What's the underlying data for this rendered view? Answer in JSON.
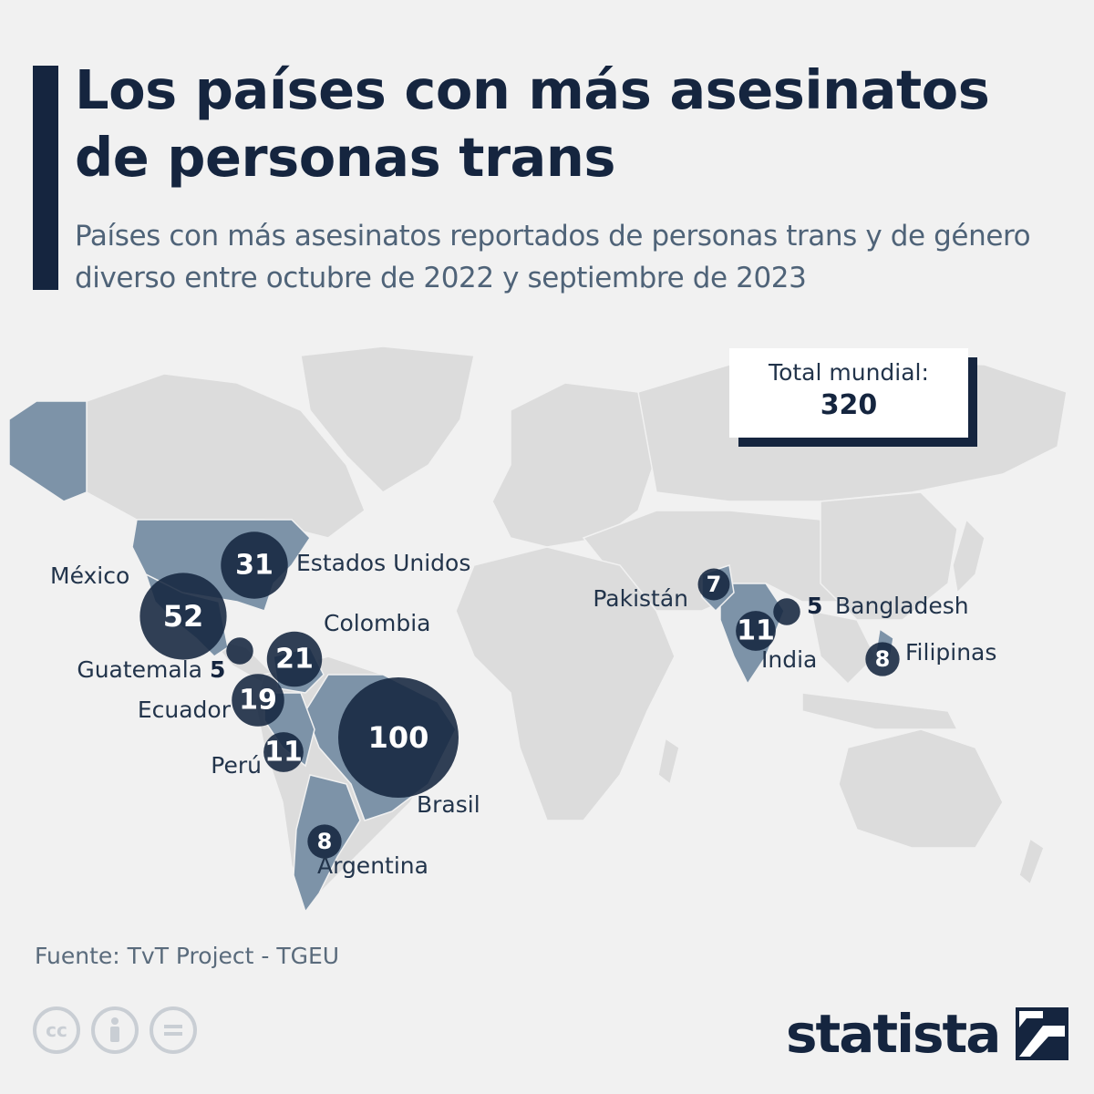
{
  "title": "Los países con más asesinatos de personas trans",
  "subtitle": "Países con más asesinatos reportados de personas trans y de género diverso entre octubre de 2022 y septiembre de 2023",
  "total": {
    "label": "Total mundial:",
    "value": "320"
  },
  "source": "Fuente: TvT Project - TGEU",
  "brand": "statista",
  "colors": {
    "bubble": "#15253f",
    "highlight_country": "#7d93a8",
    "land": "#dcdcdc",
    "title": "#15253f"
  },
  "icons": [
    "cc-icon",
    "person-icon",
    "equals-icon",
    "statista-logo-icon"
  ],
  "chart_data": {
    "type": "bubble-map",
    "title": "Los países con más asesinatos de personas trans",
    "points": [
      {
        "country": "Brasil",
        "value": 100
      },
      {
        "country": "México",
        "value": 52
      },
      {
        "country": "Estados Unidos",
        "value": 31
      },
      {
        "country": "Colombia",
        "value": 21
      },
      {
        "country": "Ecuador",
        "value": 19
      },
      {
        "country": "Perú",
        "value": 11
      },
      {
        "country": "India",
        "value": 11
      },
      {
        "country": "Argentina",
        "value": 8
      },
      {
        "country": "Filipinas",
        "value": 8
      },
      {
        "country": "Pakistán",
        "value": 7
      },
      {
        "country": "Guatemala",
        "value": 5
      },
      {
        "country": "Bangladesh",
        "value": 5
      }
    ],
    "total": 320
  }
}
